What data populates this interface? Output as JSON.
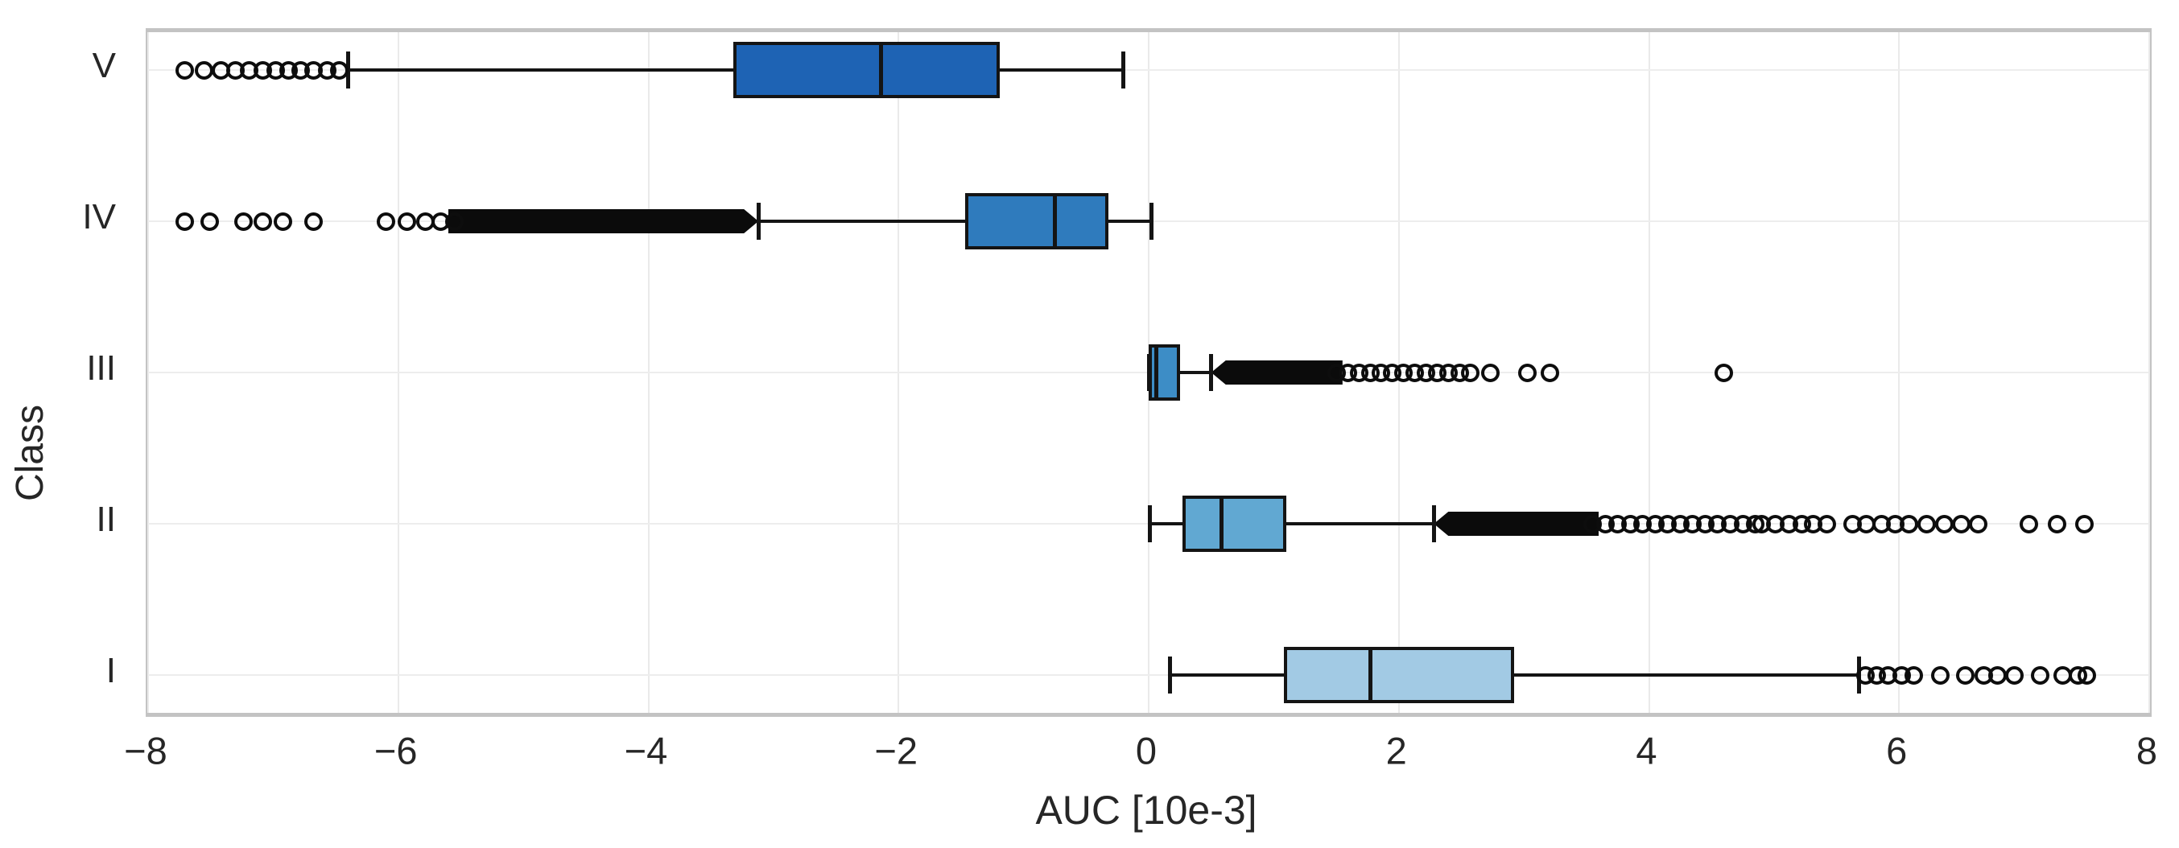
{
  "figure": {
    "background": "#ffffff",
    "text_color": "#262626",
    "grid_color": "#eaeaea",
    "border_color": "#c3c3c3",
    "box_edge_color": "#141414"
  },
  "chart_data": {
    "type": "boxplot",
    "orientation": "horizontal",
    "title": "",
    "xlabel": "AUC [10e-3]",
    "ylabel": "Class",
    "xlim": [
      -8,
      8
    ],
    "xtick_values": [
      -8,
      -6,
      -4,
      -2,
      0,
      2,
      4,
      6,
      8
    ],
    "xtick_labels": [
      "−8",
      "−6",
      "−4",
      "−2",
      "0",
      "2",
      "4",
      "6",
      "8"
    ],
    "grid": true,
    "categories": [
      "V",
      "IV",
      "III",
      "II",
      "I"
    ],
    "unit_note": "values in AUC x 10e-3, read from axis",
    "series": [
      {
        "label": "V",
        "color": "#1e63b4",
        "whislo": -6.4,
        "q1": -3.32,
        "med": -2.14,
        "q3": -1.19,
        "whishi": -0.2,
        "outliers": [
          -7.71,
          -7.55,
          -7.42,
          -7.3,
          -7.19,
          -7.08,
          -6.98,
          -6.88,
          -6.78,
          -6.68,
          -6.57,
          -6.47
        ],
        "dense_clusters": []
      },
      {
        "label": "IV",
        "color": "#2f7bbd",
        "whislo": -3.12,
        "q1": -1.47,
        "med": -0.75,
        "q3": -0.32,
        "whishi": 0.02,
        "outliers": [
          -7.71,
          -7.51,
          -7.24,
          -7.08,
          -6.92,
          -6.68,
          -6.1,
          -5.93,
          -5.78,
          -5.66,
          -5.55
        ],
        "dense_clusters": [
          {
            "from": -5.6,
            "to": -3.12,
            "tip": "right"
          }
        ]
      },
      {
        "label": "III",
        "color": "#3d8dc6",
        "whislo": 0.0,
        "q1": 0.0,
        "med": 0.06,
        "q3": 0.25,
        "whishi": 0.5,
        "outliers": [
          1.5,
          1.59,
          1.68,
          1.77,
          1.86,
          1.95,
          2.04,
          2.13,
          2.22,
          2.31,
          2.4,
          2.49,
          2.57,
          2.73,
          3.03,
          3.21,
          4.6
        ],
        "dense_clusters": [
          {
            "from": 0.5,
            "to": 1.55,
            "tip": "left"
          }
        ]
      },
      {
        "label": "II",
        "color": "#61a8d2",
        "whislo": 0.01,
        "q1": 0.27,
        "med": 0.58,
        "q3": 1.1,
        "whishi": 2.28,
        "outliers": [
          3.55,
          3.65,
          3.75,
          3.85,
          3.95,
          4.05,
          4.15,
          4.25,
          4.35,
          4.45,
          4.55,
          4.65,
          4.75,
          4.85,
          4.9,
          5.01,
          5.12,
          5.22,
          5.31,
          5.42,
          5.63,
          5.74,
          5.86,
          5.97,
          6.08,
          6.22,
          6.36,
          6.5,
          6.63,
          7.04,
          7.26,
          7.48
        ],
        "dense_clusters": [
          {
            "from": 2.28,
            "to": 3.6,
            "tip": "left"
          }
        ]
      },
      {
        "label": "I",
        "color": "#a2cae4",
        "whislo": 0.17,
        "q1": 1.08,
        "med": 1.77,
        "q3": 2.92,
        "whishi": 5.68,
        "outliers": [
          5.73,
          5.82,
          5.91,
          6.02,
          6.12,
          6.33,
          6.53,
          6.68,
          6.79,
          6.92,
          7.13,
          7.31,
          7.43,
          7.5
        ],
        "dense_clusters": []
      }
    ]
  }
}
